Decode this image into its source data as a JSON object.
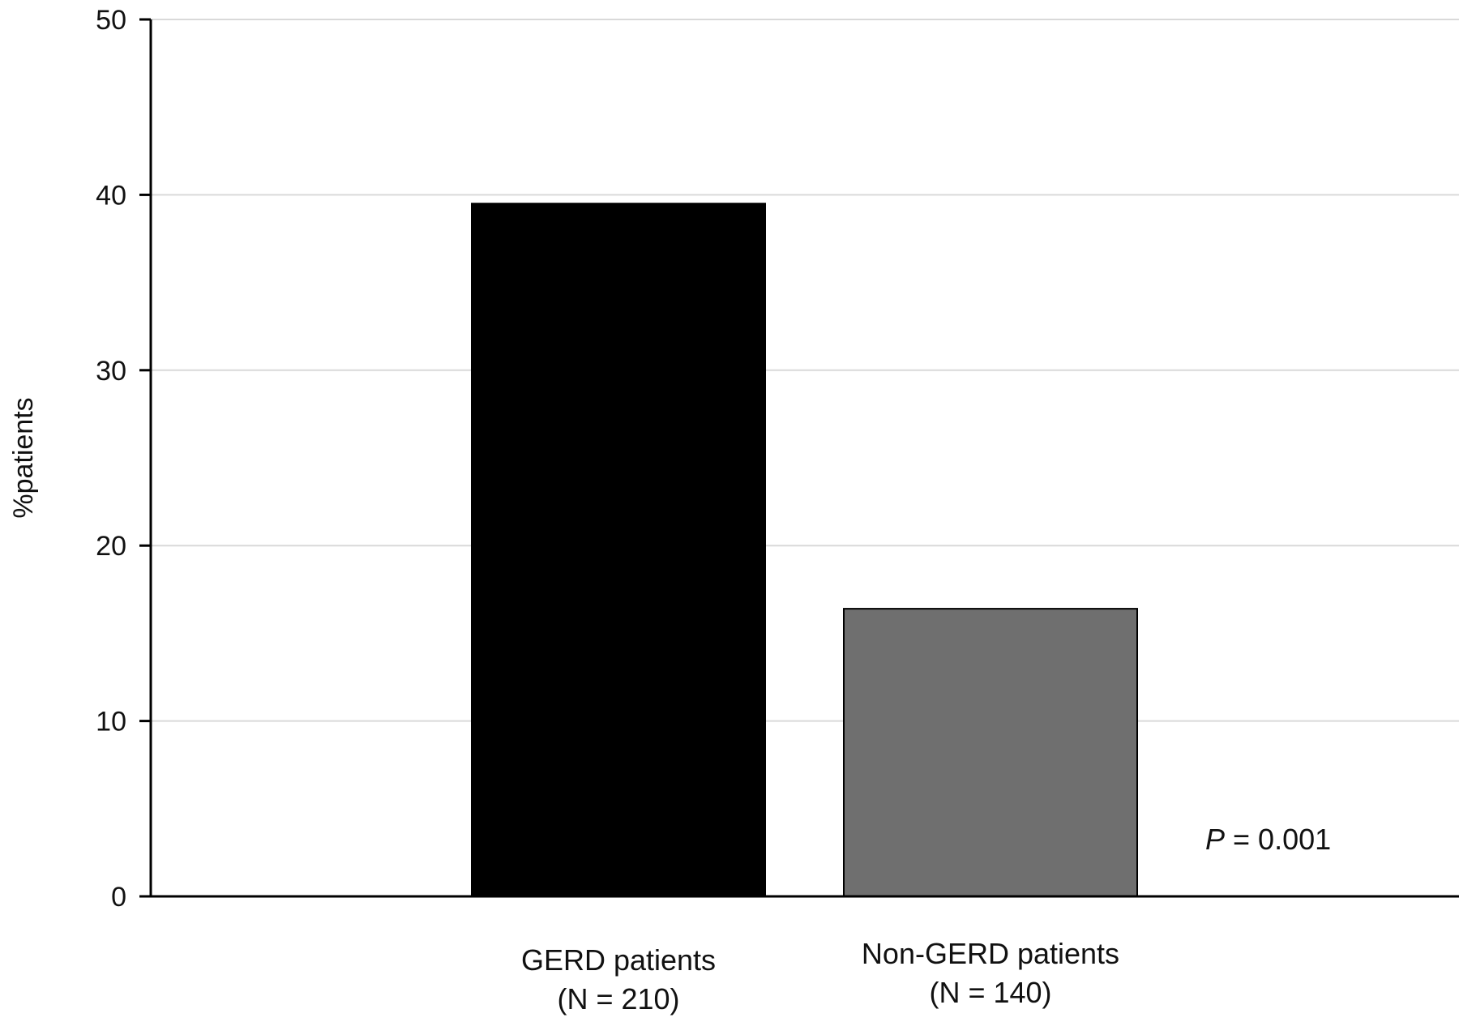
{
  "chart_data": {
    "type": "bar",
    "categories": [
      [
        "GERD patients",
        "(N = 210)"
      ],
      [
        "Non-GERD patients",
        "(N = 140)"
      ]
    ],
    "values": [
      39.5,
      16.4
    ],
    "bar_colors": [
      "#000000",
      "#6f6f6f"
    ],
    "ylabel": "%patients",
    "xlabel": "",
    "ylim": [
      0,
      50
    ],
    "yticks": [
      0,
      10,
      20,
      30,
      40,
      50
    ],
    "grid": true,
    "annotation": {
      "italic": "P",
      "rest": " = 0.001"
    }
  }
}
